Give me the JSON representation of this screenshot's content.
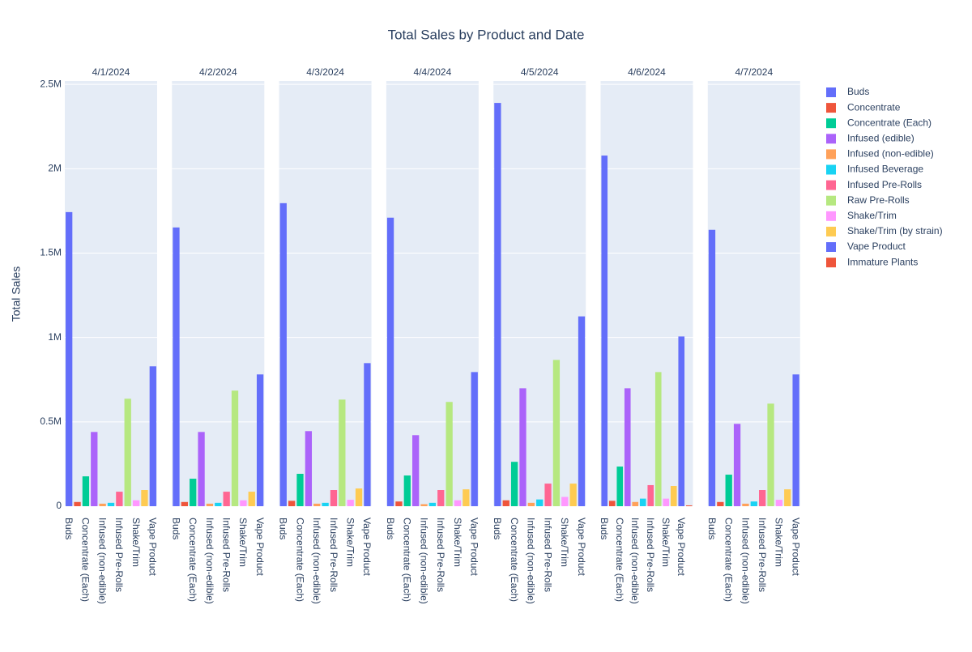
{
  "chart_data": {
    "type": "bar",
    "title": "Total Sales by Product and Date",
    "y_label": "Total Sales",
    "facets": [
      "4/1/2024",
      "4/2/2024",
      "4/3/2024",
      "4/4/2024",
      "4/5/2024",
      "4/6/2024",
      "4/7/2024"
    ],
    "ylim": [
      0,
      2520000
    ],
    "yticks": [
      0,
      {
        "value": 500000,
        "label": "0.5M"
      },
      {
        "value": 1000000,
        "label": "1M"
      },
      {
        "value": 1500000,
        "label": "1.5M"
      },
      {
        "value": 2000000,
        "label": "2M"
      },
      {
        "value": 2500000,
        "label": "2.5M"
      }
    ],
    "grid": true,
    "series": [
      {
        "name": "Buds",
        "color": "#636efa",
        "values": [
          1743000,
          1652000,
          1796000,
          1710000,
          2390000,
          2078000,
          1638000
        ]
      },
      {
        "name": "Concentrate",
        "color": "#EF553B",
        "values": [
          25000,
          25000,
          32000,
          28000,
          35000,
          32000,
          25000
        ]
      },
      {
        "name": "Concentrate (Each)",
        "color": "#00cc96",
        "values": [
          177000,
          163000,
          192000,
          182000,
          263000,
          235000,
          187000
        ]
      },
      {
        "name": "Infused (edible)",
        "color": "#ab63fa",
        "values": [
          440000,
          440000,
          445000,
          421000,
          699000,
          699000,
          488000
        ]
      },
      {
        "name": "Infused (non-edible)",
        "color": "#FFA15A",
        "values": [
          15000,
          15000,
          15000,
          12000,
          20000,
          25000,
          15000
        ]
      },
      {
        "name": "Infused Beverage",
        "color": "#19d3f3",
        "values": [
          20000,
          20000,
          20000,
          20000,
          40000,
          45000,
          28000
        ]
      },
      {
        "name": "Infused Pre-Rolls",
        "color": "#FF6692",
        "values": [
          86000,
          86000,
          96000,
          96000,
          134000,
          125000,
          96000
        ]
      },
      {
        "name": "Raw Pre-Rolls",
        "color": "#B6E880",
        "values": [
          637000,
          685000,
          632000,
          618000,
          867000,
          795000,
          608000
        ]
      },
      {
        "name": "Shake/Trim",
        "color": "#FF97FF",
        "values": [
          35000,
          35000,
          38000,
          35000,
          55000,
          45000,
          38000
        ]
      },
      {
        "name": "Shake/Trim (by strain)",
        "color": "#FECB52",
        "values": [
          96000,
          86000,
          105000,
          100000,
          134000,
          120000,
          100000
        ]
      },
      {
        "name": "Vape Product",
        "color": "#636efa",
        "values": [
          829000,
          781000,
          848000,
          795000,
          1125000,
          1006000,
          781000
        ]
      },
      {
        "name": "Immature Plants",
        "color": "#EF553B",
        "values": [
          null,
          null,
          null,
          null,
          null,
          5000,
          null
        ]
      }
    ]
  }
}
